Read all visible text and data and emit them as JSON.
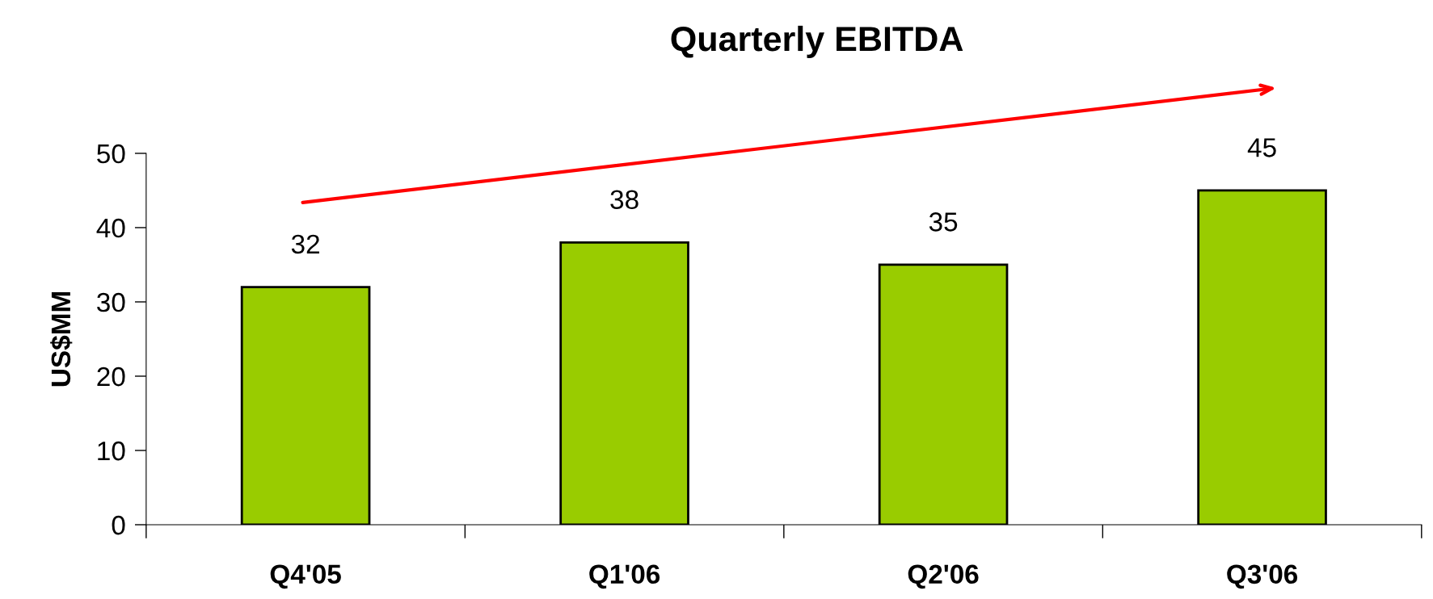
{
  "chart_data": {
    "type": "bar",
    "title": "Quarterly EBITDA",
    "ylabel": "US$MM",
    "categories": [
      "Q4'05",
      "Q1'06",
      "Q2'06",
      "Q3'06"
    ],
    "values": [
      32,
      38,
      35,
      45
    ],
    "color": "#99cc00",
    "ylim": [
      0,
      50
    ],
    "yticks": [
      0,
      10,
      20,
      30,
      40,
      50
    ],
    "data_labels": true,
    "grid": false,
    "legend": false
  }
}
